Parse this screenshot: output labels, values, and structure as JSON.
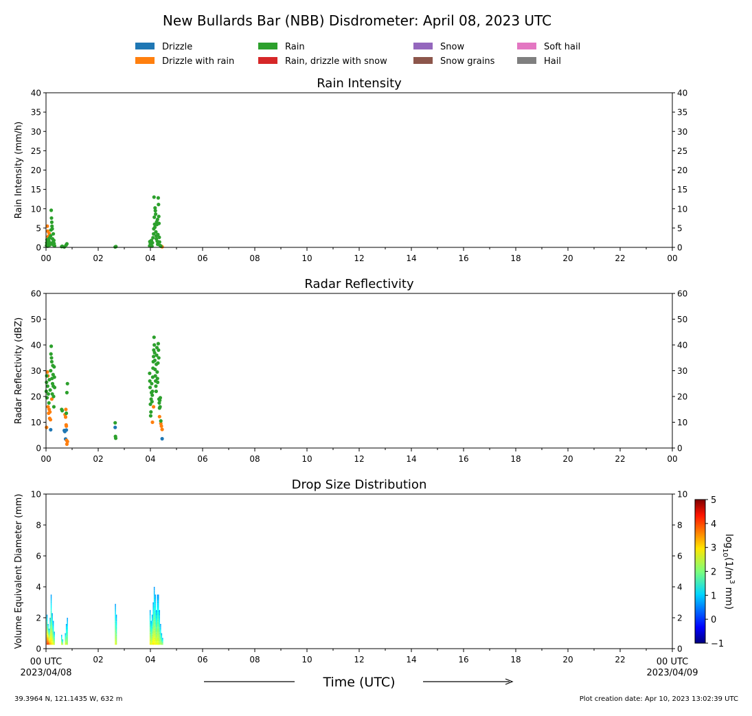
{
  "figure": {
    "title": "New Bullards Bar (NBB) Disdrometer: April 08, 2023 UTC",
    "x_axis_label": "Time (UTC)",
    "start_label_line1": "00 UTC",
    "start_label_line2": "2023/04/08",
    "end_label_line1": "00 UTC",
    "end_label_line2": "2023/04/09",
    "location_text": "39.3964 N, 121.1435 W, 632 m",
    "creation_text": "Plot creation date: Apr 10, 2023 13:02:39 UTC"
  },
  "legend": [
    {
      "label": "Drizzle",
      "color": "#1f77b4"
    },
    {
      "label": "Drizzle with rain",
      "color": "#ff7f0e"
    },
    {
      "label": "Rain",
      "color": "#2ca02c"
    },
    {
      "label": "Rain, drizzle with snow",
      "color": "#d62728"
    },
    {
      "label": "Snow",
      "color": "#9467bd"
    },
    {
      "label": "Snow grains",
      "color": "#8c564b"
    },
    {
      "label": "Soft hail",
      "color": "#e377c2"
    },
    {
      "label": "Hail",
      "color": "#7f7f7f"
    }
  ],
  "chart_data": [
    {
      "type": "scatter",
      "title": "Rain Intensity",
      "ylabel": "Rain Intensity (mm/h)",
      "xlim": [
        0,
        24
      ],
      "ylim": [
        0,
        40
      ],
      "x_tick_labels": [
        "00",
        "02",
        "04",
        "06",
        "08",
        "10",
        "12",
        "14",
        "16",
        "18",
        "20",
        "22",
        "00"
      ],
      "y_ticks": [
        0,
        5,
        10,
        15,
        20,
        25,
        30,
        35,
        40
      ],
      "grid": false,
      "series": [
        {
          "name": "Drizzle with rain",
          "color": "#ff7f0e",
          "points": [
            [
              0.05,
              5.5
            ],
            [
              0.07,
              4.2
            ],
            [
              0.08,
              2.8
            ],
            [
              0.1,
              1.5
            ],
            [
              0.12,
              3.6
            ],
            [
              0.15,
              0.8
            ],
            [
              4.42,
              0.3
            ],
            [
              4.45,
              0.15
            ]
          ]
        },
        {
          "name": "Rain",
          "color": "#2ca02c",
          "points": [
            [
              0.02,
              0.5
            ],
            [
              0.03,
              1.2
            ],
            [
              0.04,
              2.0
            ],
            [
              0.06,
              0.3
            ],
            [
              0.09,
              0.9
            ],
            [
              0.11,
              1.6
            ],
            [
              0.13,
              2.4
            ],
            [
              0.14,
              0.6
            ],
            [
              0.16,
              1.1
            ],
            [
              0.18,
              3.0
            ],
            [
              0.19,
              4.5
            ],
            [
              0.2,
              9.6
            ],
            [
              0.21,
              7.6
            ],
            [
              0.22,
              6.5
            ],
            [
              0.23,
              5.5
            ],
            [
              0.24,
              4.8
            ],
            [
              0.25,
              2.2
            ],
            [
              0.26,
              1.3
            ],
            [
              0.27,
              0.7
            ],
            [
              0.28,
              3.5
            ],
            [
              0.3,
              1.8
            ],
            [
              0.31,
              1.0
            ],
            [
              0.33,
              0.4
            ],
            [
              0.6,
              0.2
            ],
            [
              0.62,
              0.3
            ],
            [
              0.7,
              0.1
            ],
            [
              0.77,
              0.6
            ],
            [
              0.8,
              0.9
            ],
            [
              2.65,
              0.1
            ],
            [
              2.68,
              0.2
            ],
            [
              3.97,
              0.4
            ],
            [
              3.98,
              1.5
            ],
            [
              4.0,
              1.0
            ],
            [
              4.02,
              0.6
            ],
            [
              4.04,
              1.8
            ],
            [
              4.06,
              0.3
            ],
            [
              4.08,
              1.2
            ],
            [
              4.1,
              2.5
            ],
            [
              4.12,
              3.5
            ],
            [
              4.13,
              4.8
            ],
            [
              4.14,
              13.0
            ],
            [
              4.15,
              7.8
            ],
            [
              4.16,
              6.0
            ],
            [
              4.17,
              5.2
            ],
            [
              4.18,
              10.2
            ],
            [
              4.19,
              9.5
            ],
            [
              4.2,
              8.6
            ],
            [
              4.21,
              4.0
            ],
            [
              4.22,
              3.0
            ],
            [
              4.23,
              2.2
            ],
            [
              4.24,
              6.6
            ],
            [
              4.25,
              5.9
            ],
            [
              4.26,
              1.6
            ],
            [
              4.27,
              7.2
            ],
            [
              4.28,
              0.8
            ],
            [
              4.29,
              3.3
            ],
            [
              4.3,
              12.8
            ],
            [
              4.31,
              11.1
            ],
            [
              4.32,
              8.0
            ],
            [
              4.33,
              6.2
            ],
            [
              4.34,
              2.6
            ],
            [
              4.35,
              1.4
            ],
            [
              4.37,
              0.5
            ],
            [
              4.4,
              0.3
            ]
          ]
        }
      ]
    },
    {
      "type": "scatter",
      "title": "Radar Reflectivity",
      "ylabel": "Radar Reflectivity (dBZ)",
      "xlim": [
        0,
        24
      ],
      "ylim": [
        0,
        60
      ],
      "x_tick_labels": [
        "00",
        "02",
        "04",
        "06",
        "08",
        "10",
        "12",
        "14",
        "16",
        "18",
        "20",
        "22",
        "00"
      ],
      "y_ticks": [
        0,
        10,
        20,
        30,
        40,
        50,
        60
      ],
      "grid": false,
      "series": [
        {
          "name": "Drizzle",
          "color": "#1f77b4",
          "points": [
            [
              0.18,
              7.1
            ],
            [
              0.7,
              6.8
            ],
            [
              0.72,
              6.4
            ],
            [
              0.75,
              3.5
            ],
            [
              0.78,
              7.0
            ],
            [
              2.65,
              8.0
            ],
            [
              4.45,
              3.6
            ]
          ]
        },
        {
          "name": "Drizzle with rain",
          "color": "#ff7f0e",
          "points": [
            [
              0.02,
              8.0
            ],
            [
              0.05,
              29.5
            ],
            [
              0.07,
              28.0
            ],
            [
              0.08,
              16.0
            ],
            [
              0.1,
              13.5
            ],
            [
              0.12,
              15.0
            ],
            [
              0.14,
              11.5
            ],
            [
              0.15,
              14.0
            ],
            [
              0.17,
              11.0
            ],
            [
              0.22,
              19.0
            ],
            [
              0.73,
              13.0
            ],
            [
              0.75,
              12.0
            ],
            [
              0.76,
              15.0
            ],
            [
              0.77,
              9.0
            ],
            [
              0.78,
              8.5
            ],
            [
              0.79,
              3.0
            ],
            [
              0.8,
              1.5
            ],
            [
              0.82,
              2.5
            ],
            [
              4.08,
              10.0
            ],
            [
              4.12,
              16.0
            ],
            [
              4.35,
              12.2
            ],
            [
              4.4,
              9.5
            ],
            [
              4.42,
              8.5
            ],
            [
              4.45,
              7.2
            ]
          ]
        },
        {
          "name": "Rain",
          "color": "#2ca02c",
          "points": [
            [
              0.01,
              22.0
            ],
            [
              0.02,
              25.5
            ],
            [
              0.03,
              28.0
            ],
            [
              0.04,
              19.5
            ],
            [
              0.06,
              24.0
            ],
            [
              0.09,
              21.0
            ],
            [
              0.11,
              17.5
            ],
            [
              0.13,
              26.5
            ],
            [
              0.16,
              22.5
            ],
            [
              0.18,
              30.0
            ],
            [
              0.19,
              36.5
            ],
            [
              0.2,
              39.5
            ],
            [
              0.21,
              35.0
            ],
            [
              0.22,
              33.5
            ],
            [
              0.23,
              27.0
            ],
            [
              0.24,
              21.0
            ],
            [
              0.25,
              25.0
            ],
            [
              0.26,
              32.0
            ],
            [
              0.27,
              28.5
            ],
            [
              0.28,
              24.0
            ],
            [
              0.29,
              20.0
            ],
            [
              0.3,
              16.0
            ],
            [
              0.31,
              31.5
            ],
            [
              0.32,
              27.5
            ],
            [
              0.33,
              23.5
            ],
            [
              0.6,
              15.0
            ],
            [
              0.62,
              14.5
            ],
            [
              0.78,
              13.5
            ],
            [
              0.8,
              21.5
            ],
            [
              0.82,
              25.0
            ],
            [
              2.65,
              9.8
            ],
            [
              2.66,
              4.5
            ],
            [
              2.67,
              3.8
            ],
            [
              3.97,
              29.0
            ],
            [
              3.98,
              26.0
            ],
            [
              3.99,
              23.5
            ],
            [
              4.0,
              17.0
            ],
            [
              4.01,
              12.5
            ],
            [
              4.02,
              14.0
            ],
            [
              4.03,
              19.0
            ],
            [
              4.04,
              21.5
            ],
            [
              4.05,
              25.0
            ],
            [
              4.06,
              18.0
            ],
            [
              4.07,
              20.5
            ],
            [
              4.08,
              22.0
            ],
            [
              4.09,
              27.5
            ],
            [
              4.1,
              31.0
            ],
            [
              4.11,
              33.5
            ],
            [
              4.12,
              35.5
            ],
            [
              4.13,
              38.0
            ],
            [
              4.14,
              43.0
            ],
            [
              4.15,
              40.0
            ],
            [
              4.16,
              37.0
            ],
            [
              4.17,
              34.0
            ],
            [
              4.18,
              30.5
            ],
            [
              4.19,
              28.0
            ],
            [
              4.2,
              26.0
            ],
            [
              4.21,
              24.0
            ],
            [
              4.22,
              22.0
            ],
            [
              4.23,
              32.5
            ],
            [
              4.24,
              36.0
            ],
            [
              4.25,
              39.0
            ],
            [
              4.26,
              29.5
            ],
            [
              4.27,
              27.0
            ],
            [
              4.28,
              25.5
            ],
            [
              4.29,
              33.0
            ],
            [
              4.3,
              40.5
            ],
            [
              4.31,
              38.0
            ],
            [
              4.32,
              35.0
            ],
            [
              4.33,
              19.0
            ],
            [
              4.34,
              17.5
            ],
            [
              4.35,
              15.5
            ],
            [
              4.36,
              18.5
            ],
            [
              4.37,
              16.0
            ],
            [
              4.38,
              19.5
            ],
            [
              4.4,
              10.5
            ]
          ]
        }
      ]
    },
    {
      "type": "heatmap",
      "title": "Drop Size Distribution",
      "ylabel": "Volume Equivalent Diameter (mm)",
      "xlim": [
        0,
        24
      ],
      "ylim": [
        0,
        10
      ],
      "x_tick_labels": [
        "00 UTC",
        "02",
        "04",
        "06",
        "08",
        "10",
        "12",
        "14",
        "16",
        "18",
        "20",
        "22",
        "00 UTC"
      ],
      "y_ticks": [
        0,
        2,
        4,
        6,
        8,
        10
      ],
      "colorbar": {
        "label": "log10(1/m3 mm)",
        "range": [
          -1,
          5
        ],
        "ticks": [
          -1,
          0,
          1,
          2,
          3,
          4,
          5
        ],
        "colormap": "jet"
      },
      "columns": [
        {
          "x": 0.02,
          "top": 2.2,
          "peak": 3.8
        },
        {
          "x": 0.06,
          "top": 1.6,
          "peak": 4.0
        },
        {
          "x": 0.1,
          "top": 1.3,
          "peak": 3.5
        },
        {
          "x": 0.14,
          "top": 2.0,
          "peak": 3.2
        },
        {
          "x": 0.18,
          "top": 3.5,
          "peak": 3.0
        },
        {
          "x": 0.22,
          "top": 2.3,
          "peak": 2.8
        },
        {
          "x": 0.26,
          "top": 1.8,
          "peak": 2.6
        },
        {
          "x": 0.3,
          "top": 1.1,
          "peak": 2.4
        },
        {
          "x": 0.58,
          "top": 0.9,
          "peak": 2.5
        },
        {
          "x": 0.62,
          "top": 0.6,
          "peak": 2.2
        },
        {
          "x": 0.72,
          "top": 1.0,
          "peak": 2.6
        },
        {
          "x": 0.76,
          "top": 1.6,
          "peak": 2.4
        },
        {
          "x": 0.8,
          "top": 2.0,
          "peak": 2.2
        },
        {
          "x": 2.64,
          "top": 2.9,
          "peak": 2.6
        },
        {
          "x": 2.68,
          "top": 2.2,
          "peak": 2.4
        },
        {
          "x": 3.97,
          "top": 2.5,
          "peak": 2.8
        },
        {
          "x": 4.01,
          "top": 1.8,
          "peak": 2.5
        },
        {
          "x": 4.05,
          "top": 2.2,
          "peak": 2.7
        },
        {
          "x": 4.09,
          "top": 3.0,
          "peak": 2.9
        },
        {
          "x": 4.13,
          "top": 4.0,
          "peak": 2.8
        },
        {
          "x": 4.17,
          "top": 3.5,
          "peak": 2.7
        },
        {
          "x": 4.21,
          "top": 2.5,
          "peak": 2.6
        },
        {
          "x": 4.25,
          "top": 3.5,
          "peak": 2.7
        },
        {
          "x": 4.29,
          "top": 3.5,
          "peak": 2.6
        },
        {
          "x": 4.33,
          "top": 2.5,
          "peak": 2.4
        },
        {
          "x": 4.37,
          "top": 1.6,
          "peak": 2.3
        },
        {
          "x": 4.41,
          "top": 1.0,
          "peak": 2.2
        },
        {
          "x": 4.45,
          "top": 0.7,
          "peak": 2.1
        }
      ]
    }
  ]
}
